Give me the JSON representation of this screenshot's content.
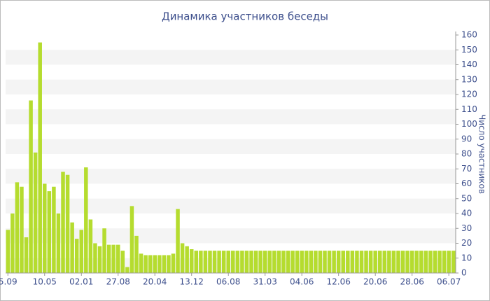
{
  "chart_data": {
    "type": "bar",
    "title": "Динамика участников беседы",
    "y_label": "Число участников",
    "categories": [
      "5.09",
      null,
      null,
      null,
      null,
      null,
      null,
      null,
      "10.05",
      null,
      null,
      null,
      null,
      null,
      null,
      null,
      "02.01",
      null,
      null,
      null,
      null,
      null,
      null,
      null,
      "27.08",
      null,
      null,
      null,
      null,
      null,
      null,
      null,
      "20.04",
      null,
      null,
      null,
      null,
      null,
      null,
      null,
      "13.12",
      null,
      null,
      null,
      null,
      null,
      null,
      null,
      "06.08",
      null,
      null,
      null,
      null,
      null,
      null,
      null,
      "31.03",
      null,
      null,
      null,
      null,
      null,
      null,
      null,
      "04.06",
      null,
      null,
      null,
      null,
      null,
      null,
      null,
      "12.06",
      null,
      null,
      null,
      null,
      null,
      null,
      null,
      "20.06",
      null,
      null,
      null,
      null,
      null,
      null,
      null,
      "28.06",
      null,
      null,
      null,
      null,
      null,
      null,
      null,
      "06.07",
      null
    ],
    "values": [
      29,
      40,
      61,
      58,
      24,
      116,
      81,
      155,
      60,
      55,
      58,
      40,
      68,
      66,
      34,
      23,
      29,
      71,
      36,
      20,
      18,
      30,
      19,
      19,
      19,
      15,
      4,
      45,
      25,
      13,
      12,
      12,
      12,
      12,
      12,
      12,
      13,
      43,
      20,
      18,
      16,
      15,
      15,
      15,
      15,
      15,
      15,
      15,
      15,
      15,
      15,
      15,
      15,
      15,
      15,
      15,
      15,
      15,
      15,
      15,
      15,
      15,
      15,
      15,
      15,
      15,
      15,
      15,
      15,
      15,
      15,
      15,
      15,
      15,
      15,
      15,
      15,
      15,
      15,
      15,
      15,
      15,
      15,
      15,
      15,
      15,
      15,
      15,
      15,
      15,
      15,
      15,
      15,
      15,
      15,
      15,
      15,
      15
    ],
    "color": "#b5dc2f",
    "ylim": [
      0,
      160
    ],
    "yticks": [
      0,
      10,
      20,
      30,
      40,
      50,
      60,
      70,
      80,
      90,
      100,
      110,
      120,
      130,
      140,
      150,
      160
    ],
    "grid": true,
    "y_axis_side": "right"
  }
}
